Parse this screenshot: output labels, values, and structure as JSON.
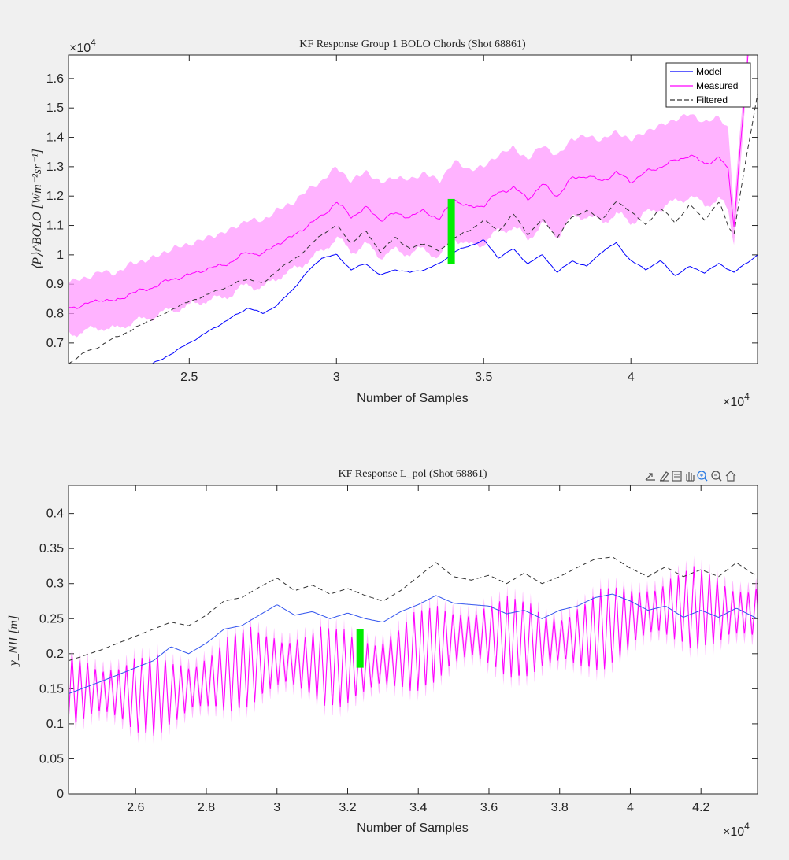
{
  "figure": {
    "background": "#f0f0f0",
    "colors": {
      "model": "#0000ff",
      "measured": "#ff00ff",
      "band": "#ff99ff",
      "filtered": "#000000",
      "marker": "#00ee00"
    },
    "toolbar": {
      "icons": [
        "export-icon",
        "brush-icon",
        "datatip-icon",
        "pan-icon",
        "zoom-in-icon",
        "zoom-out-icon",
        "home-icon"
      ]
    }
  },
  "chart_data": [
    {
      "type": "line",
      "title": "KF Response Group 1 BOLO Chords (Shot 68861)",
      "xlabel": "Number of Samples",
      "ylabel": "⟨P⟩ₗ^BOLO [Wm⁻²sr⁻¹]",
      "x_multiplier": "×10",
      "y_multiplier": "×10",
      "exponent": "4",
      "xlim": [
        20900,
        44300
      ],
      "ylim": [
        6300,
        16800
      ],
      "xticks": [
        25000,
        30000,
        35000,
        40000
      ],
      "xtick_labels": [
        "2.5",
        "3",
        "3.5",
        "4"
      ],
      "yticks": [
        7000,
        8000,
        9000,
        10000,
        11000,
        12000,
        13000,
        14000,
        15000,
        16000
      ],
      "ytick_labels": [
        "0.7",
        "0.8",
        "0.9",
        "1",
        "1.1",
        "1.2",
        "1.3",
        "1.4",
        "1.5",
        "1.6"
      ],
      "legend": {
        "position": "top-right",
        "entries": [
          "Model",
          "Measured",
          "Filtered"
        ]
      },
      "series": [
        {
          "name": "Model",
          "x": [
            20900,
            23000,
            24000,
            25000,
            26000,
            26500,
            27000,
            27500,
            28000,
            28500,
            29000,
            29500,
            30000,
            30500,
            31000,
            31500,
            32000,
            32500,
            33000,
            33500,
            34000,
            34500,
            35000,
            35500,
            36000,
            36500,
            37000,
            37500,
            38000,
            38500,
            39000,
            39500,
            40000,
            40500,
            41000,
            41500,
            42000,
            42500,
            43000,
            43500,
            44300
          ],
          "y": [
            5200,
            6000,
            6400,
            7000,
            7600,
            7900,
            8200,
            8000,
            8300,
            8800,
            9400,
            9900,
            10000,
            9500,
            9700,
            9300,
            9500,
            9400,
            9500,
            9700,
            10100,
            10300,
            10500,
            9900,
            10200,
            9700,
            10000,
            9400,
            9800,
            9600,
            10100,
            10400,
            9800,
            9500,
            9800,
            9300,
            9600,
            9400,
            9700,
            9400,
            10000
          ]
        },
        {
          "name": "Measured",
          "x": [
            20900,
            21500,
            22000,
            22500,
            23000,
            23500,
            24000,
            24500,
            25000,
            25500,
            26000,
            26500,
            27000,
            27500,
            28000,
            28500,
            29000,
            29500,
            30000,
            30500,
            31000,
            31500,
            32000,
            32500,
            33000,
            33500,
            34000,
            34500,
            35000,
            35500,
            36000,
            36500,
            37000,
            37500,
            38000,
            38500,
            39000,
            39500,
            40000,
            40500,
            41000,
            41500,
            42000,
            42500,
            43000,
            43300,
            43500,
            43700,
            44000
          ],
          "y": [
            8200,
            8300,
            8500,
            8400,
            8700,
            8800,
            9000,
            9200,
            9300,
            9500,
            9600,
            9800,
            10100,
            10000,
            10400,
            10600,
            11000,
            11300,
            11800,
            11300,
            11600,
            11200,
            11400,
            11300,
            11500,
            11200,
            11900,
            11600,
            11700,
            12100,
            12300,
            11900,
            12400,
            12000,
            12600,
            12700,
            12500,
            12800,
            12500,
            12800,
            13000,
            13200,
            13400,
            13100,
            13300,
            12900,
            11000,
            13500,
            17000
          ],
          "band": [
            900,
            900,
            950,
            950,
            1000,
            1000,
            1000,
            1050,
            1050,
            1050,
            1100,
            1100,
            1100,
            1150,
            1150,
            1150,
            1200,
            1200,
            1200,
            1200,
            1250,
            1250,
            1250,
            1250,
            1300,
            1300,
            1300,
            1300,
            1300,
            1300,
            1350,
            1350,
            1350,
            1350,
            1350,
            1350,
            1400,
            1400,
            1400,
            1400,
            1400,
            1400,
            1400,
            1400,
            1400,
            1400,
            600,
            600,
            600
          ]
        },
        {
          "name": "Filtered",
          "x": [
            20900,
            21500,
            22000,
            22500,
            23000,
            23500,
            24000,
            24500,
            25000,
            25500,
            26000,
            26500,
            27000,
            27500,
            28000,
            28500,
            29000,
            29500,
            30000,
            30500,
            31000,
            31500,
            32000,
            32500,
            33000,
            33500,
            34000,
            34500,
            35000,
            35500,
            36000,
            36500,
            37000,
            37500,
            38000,
            38500,
            39000,
            39500,
            40000,
            40500,
            41000,
            41500,
            42000,
            42500,
            43000,
            43300,
            43500,
            43700,
            44300
          ],
          "y": [
            6300,
            6700,
            6900,
            7200,
            7400,
            7700,
            7900,
            8200,
            8400,
            8600,
            8800,
            9000,
            9200,
            9000,
            9500,
            9800,
            10200,
            10700,
            11000,
            10400,
            10800,
            10100,
            10600,
            10200,
            10400,
            10100,
            10600,
            10800,
            11200,
            10800,
            11400,
            10700,
            11200,
            10600,
            11300,
            11500,
            11200,
            11800,
            11500,
            11000,
            11600,
            11100,
            11700,
            11200,
            11800,
            11000,
            10700,
            12000,
            15500
          ]
        }
      ],
      "marker": {
        "x": 33900,
        "y_from": 9700,
        "y_to": 11900
      }
    },
    {
      "type": "line",
      "title": "KF Response L_pol (Shot 68861)",
      "xlabel": "Number of Samples",
      "ylabel": "y_NII [m]",
      "x_multiplier": "×10",
      "exponent": "4",
      "xlim": [
        24100,
        43600
      ],
      "ylim": [
        0,
        0.44
      ],
      "xticks": [
        26000,
        28000,
        30000,
        32000,
        34000,
        36000,
        38000,
        40000,
        42000
      ],
      "xtick_labels": [
        "2.6",
        "2.8",
        "3",
        "3.2",
        "3.4",
        "3.6",
        "3.8",
        "4",
        "4.2"
      ],
      "yticks": [
        0,
        0.05,
        0.1,
        0.15,
        0.2,
        0.25,
        0.3,
        0.35,
        0.4
      ],
      "ytick_labels": [
        "0",
        "0.05",
        "0.1",
        "0.15",
        "0.2",
        "0.25",
        "0.3",
        "0.35",
        "0.4"
      ],
      "series": [
        {
          "name": "Model",
          "x": [
            24100,
            25000,
            26000,
            26500,
            27000,
            27500,
            28000,
            28500,
            29000,
            29500,
            30000,
            30500,
            31000,
            31500,
            32000,
            32500,
            33000,
            33500,
            34000,
            34500,
            35000,
            35500,
            36000,
            36500,
            37000,
            37500,
            38000,
            38500,
            39000,
            39500,
            40000,
            40500,
            41000,
            41500,
            42000,
            42500,
            43000,
            43600
          ],
          "y": [
            0.143,
            0.16,
            0.18,
            0.19,
            0.21,
            0.2,
            0.215,
            0.235,
            0.24,
            0.255,
            0.27,
            0.255,
            0.26,
            0.25,
            0.258,
            0.25,
            0.245,
            0.26,
            0.27,
            0.283,
            0.272,
            0.27,
            0.268,
            0.257,
            0.262,
            0.25,
            0.262,
            0.268,
            0.28,
            0.285,
            0.275,
            0.262,
            0.268,
            0.252,
            0.262,
            0.252,
            0.265,
            0.25
          ]
        },
        {
          "name": "Filtered",
          "x": [
            24100,
            25000,
            26000,
            26500,
            27000,
            27500,
            28000,
            28500,
            29000,
            29500,
            30000,
            30500,
            31000,
            31500,
            32000,
            32500,
            33000,
            33500,
            34000,
            34500,
            35000,
            35500,
            36000,
            36500,
            37000,
            37500,
            38000,
            38500,
            39000,
            39500,
            40000,
            40500,
            41000,
            41500,
            42000,
            42500,
            43000,
            43600
          ],
          "y": [
            0.19,
            0.205,
            0.225,
            0.235,
            0.245,
            0.24,
            0.255,
            0.275,
            0.28,
            0.295,
            0.308,
            0.29,
            0.298,
            0.285,
            0.293,
            0.283,
            0.275,
            0.29,
            0.31,
            0.33,
            0.31,
            0.305,
            0.312,
            0.3,
            0.315,
            0.3,
            0.31,
            0.323,
            0.335,
            0.338,
            0.322,
            0.31,
            0.324,
            0.31,
            0.32,
            0.31,
            0.33,
            0.31
          ]
        },
        {
          "name": "Measured",
          "x_start": 24100,
          "x_end": 43600,
          "period": 220,
          "center_start": 0.135,
          "center_end": 0.27,
          "amplitude": 0.06
        }
      ],
      "marker": {
        "x": 32350,
        "y_from": 0.18,
        "y_to": 0.235
      }
    }
  ]
}
